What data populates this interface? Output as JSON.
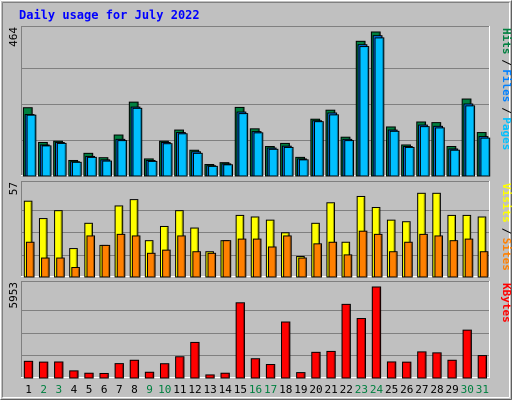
{
  "title": "Daily usage for July 2022",
  "colors": {
    "background": "#c0c0c0",
    "title": "#0000ff",
    "hits": "#008040",
    "files": "#0080ff",
    "pages": "#00c0ff",
    "visits": "#ffff00",
    "sites": "#ff8000",
    "kbytes": "#ff0000",
    "weekend_day": "#008040",
    "weekday": "#000000",
    "gridline": "#808080"
  },
  "chart_data": [
    {
      "type": "bar",
      "panel": "top",
      "y_max_label": "464",
      "ylim": [
        0,
        464
      ],
      "categories": [
        "1",
        "2",
        "3",
        "4",
        "5",
        "6",
        "7",
        "8",
        "9",
        "10",
        "11",
        "12",
        "13",
        "14",
        "15",
        "16",
        "17",
        "18",
        "19",
        "20",
        "21",
        "22",
        "23",
        "24",
        "25",
        "26",
        "27",
        "28",
        "29",
        "30",
        "31"
      ],
      "right_legend": [
        {
          "label": "Hits",
          "key": "hits"
        },
        {
          "label": "Files",
          "key": "files"
        },
        {
          "label": "Pages",
          "key": "pages"
        }
      ],
      "series": [
        {
          "name": "Hits",
          "key": "hits",
          "values": [
            220,
            108,
            112,
            50,
            73,
            59,
            132,
            238,
            55,
            112,
            148,
            83,
            37,
            43,
            221,
            152,
            95,
            105,
            60,
            183,
            212,
            125,
            434,
            464,
            158,
            100,
            174,
            172,
            95,
            248,
            140
          ]
        },
        {
          "name": "Files",
          "key": "files",
          "values": [
            198,
            100,
            108,
            46,
            63,
            52,
            118,
            222,
            50,
            108,
            140,
            78,
            33,
            39,
            206,
            143,
            90,
            96,
            55,
            178,
            203,
            118,
            423,
            452,
            148,
            95,
            164,
            160,
            87,
            232,
            127
          ]
        },
        {
          "name": "Pages",
          "key": "pages",
          "values": [
            196,
            97,
            105,
            44,
            60,
            48,
            114,
            218,
            47,
            104,
            136,
            73,
            31,
            36,
            201,
            139,
            86,
            92,
            52,
            175,
            197,
            114,
            417,
            445,
            144,
            92,
            159,
            155,
            83,
            226,
            122
          ]
        }
      ],
      "weekend_days": [
        2,
        3,
        9,
        10,
        16,
        17,
        23,
        24,
        30,
        31
      ]
    },
    {
      "type": "bar",
      "panel": "middle",
      "y_max_label": "57",
      "ylim": [
        0,
        57
      ],
      "categories": [
        "1",
        "2",
        "3",
        "4",
        "5",
        "6",
        "7",
        "8",
        "9",
        "10",
        "11",
        "12",
        "13",
        "14",
        "15",
        "16",
        "17",
        "18",
        "19",
        "20",
        "21",
        "22",
        "23",
        "24",
        "25",
        "26",
        "27",
        "28",
        "29",
        "30",
        "31"
      ],
      "right_legend": [
        {
          "label": "Visits",
          "key": "visits"
        },
        {
          "label": "Sites",
          "key": "sites"
        }
      ],
      "series": [
        {
          "name": "Visits",
          "key": "visits",
          "values": [
            48,
            37,
            42,
            18,
            34,
            20,
            45,
            49,
            23,
            32,
            42,
            31,
            16,
            23,
            39,
            38,
            36,
            28,
            13,
            34,
            47,
            22,
            51,
            44,
            36,
            35,
            53,
            53,
            39,
            39,
            38
          ]
        },
        {
          "name": "Sites",
          "key": "sites",
          "values": [
            22,
            12,
            12,
            6,
            26,
            20,
            27,
            26,
            15,
            17,
            26,
            16,
            15,
            23,
            24,
            24,
            19,
            26,
            12,
            21,
            22,
            14,
            29,
            27,
            16,
            22,
            27,
            26,
            23,
            24,
            16
          ]
        }
      ]
    },
    {
      "type": "bar",
      "panel": "bottom",
      "y_max_label": "5953",
      "ylim": [
        0,
        5953
      ],
      "categories": [
        "1",
        "2",
        "3",
        "4",
        "5",
        "6",
        "7",
        "8",
        "9",
        "10",
        "11",
        "12",
        "13",
        "14",
        "15",
        "16",
        "17",
        "18",
        "19",
        "20",
        "21",
        "22",
        "23",
        "24",
        "25",
        "26",
        "27",
        "28",
        "29",
        "30",
        "31"
      ],
      "right_legend": [
        {
          "label": "KBytes",
          "key": "kbytes"
        }
      ],
      "series": [
        {
          "name": "KBytes",
          "key": "kbytes",
          "values": [
            1091,
            1039,
            1047,
            466,
            312,
            296,
            940,
            1160,
            376,
            934,
            1390,
            2327,
            201,
            312,
            4920,
            1260,
            882,
            3662,
            352,
            1679,
            1738,
            4817,
            3890,
            5953,
            1050,
            1036,
            1708,
            1645,
            1160,
            3130,
            1466
          ]
        }
      ]
    }
  ],
  "x_axis": {
    "labels": [
      "1",
      "2",
      "3",
      "4",
      "5",
      "6",
      "7",
      "8",
      "9",
      "10",
      "11",
      "12",
      "13",
      "14",
      "15",
      "16",
      "17",
      "18",
      "19",
      "20",
      "21",
      "22",
      "23",
      "24",
      "25",
      "26",
      "27",
      "28",
      "29",
      "30",
      "31"
    ]
  }
}
